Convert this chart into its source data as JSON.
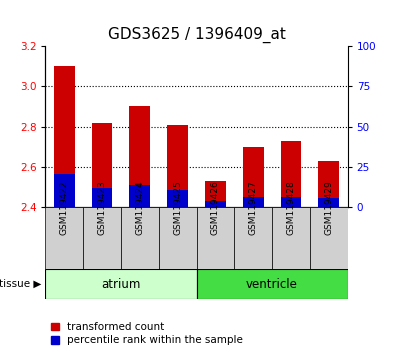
{
  "title": "GDS3625 / 1396409_at",
  "samples": [
    "GSM119422",
    "GSM119423",
    "GSM119424",
    "GSM119425",
    "GSM119426",
    "GSM119427",
    "GSM119428",
    "GSM119429"
  ],
  "red_top": [
    3.1,
    2.82,
    2.9,
    2.81,
    2.53,
    2.7,
    2.73,
    2.63
  ],
  "blue_top": [
    2.565,
    2.493,
    2.508,
    2.485,
    2.432,
    2.45,
    2.45,
    2.443
  ],
  "baseline": 2.4,
  "ylim": [
    2.4,
    3.2
  ],
  "yticks_left": [
    2.4,
    2.6,
    2.8,
    3.0,
    3.2
  ],
  "yticks_right": [
    0,
    25,
    50,
    75,
    100
  ],
  "grid_lines": [
    3.0,
    2.8,
    2.6
  ],
  "bar_width": 0.55,
  "red_color": "#cc0000",
  "blue_color": "#0000cc",
  "tissue_groups": [
    {
      "label": "atrium",
      "start": 0,
      "end": 3,
      "light_color": "#ccffcc",
      "dark_color": "#ccffcc"
    },
    {
      "label": "ventricle",
      "start": 4,
      "end": 7,
      "light_color": "#44dd44",
      "dark_color": "#44dd44"
    }
  ],
  "tissue_label": "tissue",
  "legend_red": "transformed count",
  "legend_blue": "percentile rank within the sample",
  "plot_bg": "#ffffff",
  "fig_bg": "#ffffff",
  "gray_box": "#d0d0d0",
  "title_fontsize": 11,
  "tick_fontsize": 7.5
}
